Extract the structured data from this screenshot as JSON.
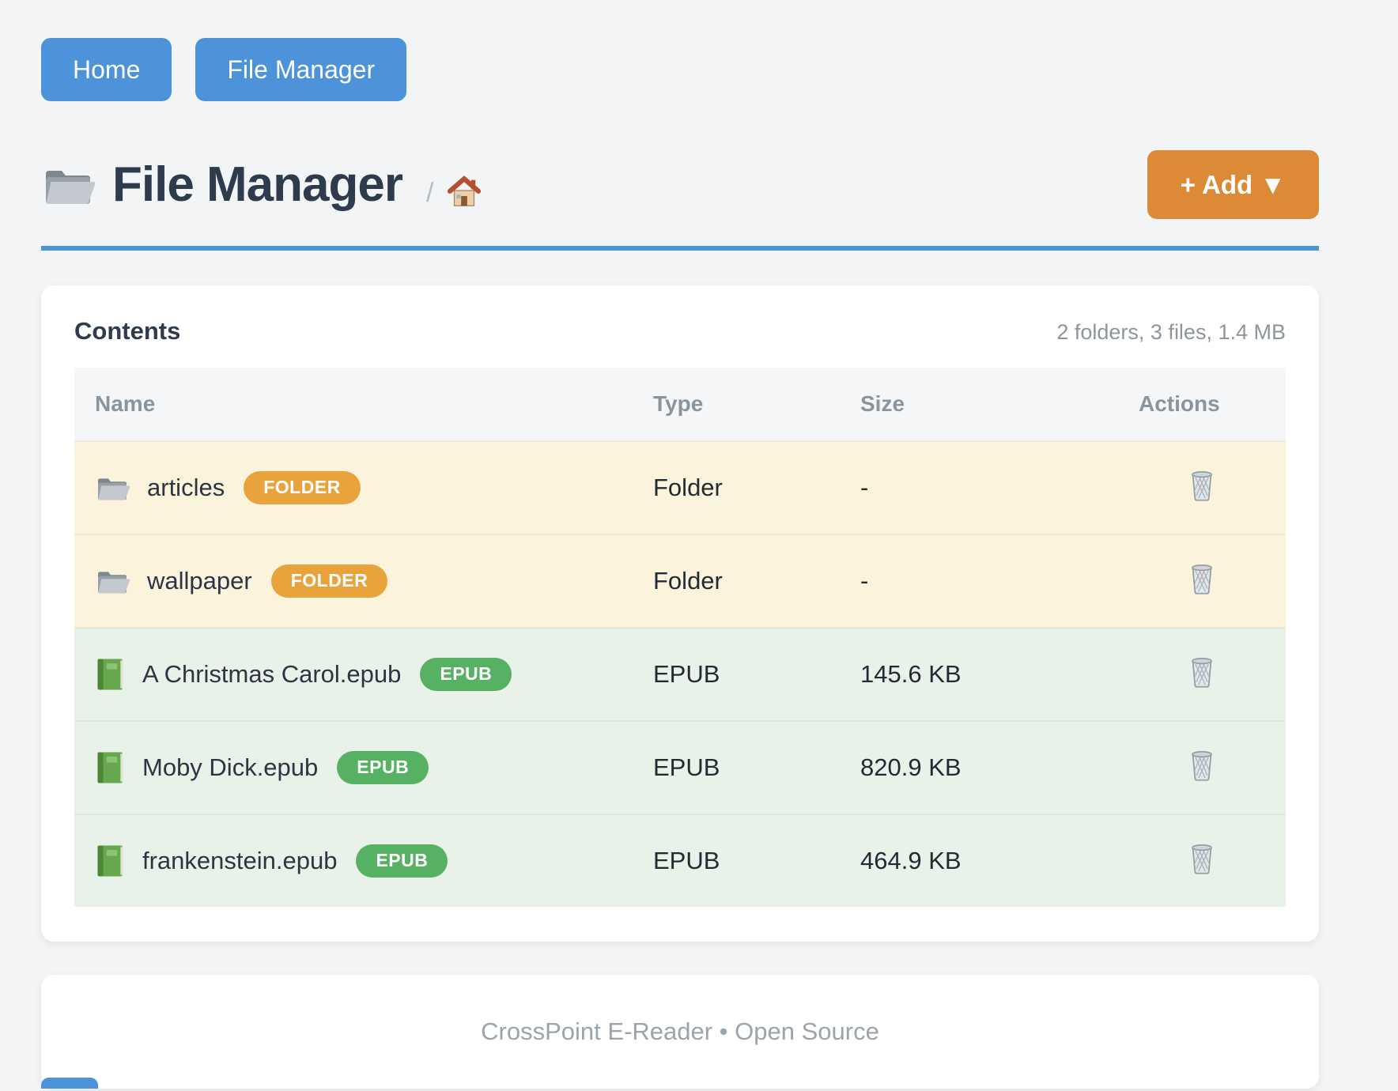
{
  "nav": {
    "buttons": [
      {
        "label": "Home"
      },
      {
        "label": "File Manager"
      }
    ]
  },
  "header": {
    "title": "File Manager",
    "breadcrumb_separator": "/",
    "add_button_label": "+ Add ▼"
  },
  "contents": {
    "heading": "Contents",
    "summary": "2 folders, 3 files, 1.4 MB",
    "columns": [
      "Name",
      "Type",
      "Size",
      "Actions"
    ],
    "rows": [
      {
        "name": "articles",
        "badge": "FOLDER",
        "kind": "folder",
        "type": "Folder",
        "size": "-"
      },
      {
        "name": "wallpaper",
        "badge": "FOLDER",
        "kind": "folder",
        "type": "Folder",
        "size": "-"
      },
      {
        "name": "A Christmas Carol.epub",
        "badge": "EPUB",
        "kind": "epub",
        "type": "EPUB",
        "size": "145.6 KB"
      },
      {
        "name": "Moby Dick.epub",
        "badge": "EPUB",
        "kind": "epub",
        "type": "EPUB",
        "size": "820.9 KB"
      },
      {
        "name": "frankenstein.epub",
        "badge": "EPUB",
        "kind": "epub",
        "type": "EPUB",
        "size": "464.9 KB"
      }
    ]
  },
  "footer": {
    "text": "CrossPoint E-Reader • Open Source"
  },
  "colors": {
    "accent_blue": "#4d93d9",
    "accent_orange": "#dd8a36",
    "badge_folder": "#e9a33c",
    "badge_epub": "#57b163",
    "row_folder_bg": "#fcf3dc",
    "row_epub_bg": "#e9f2e8"
  }
}
